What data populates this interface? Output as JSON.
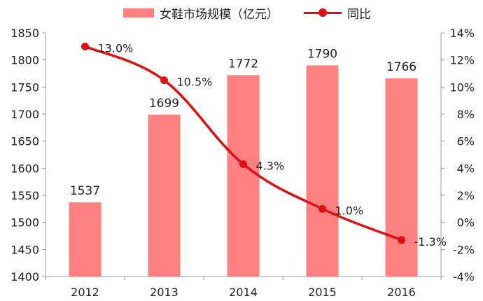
{
  "chart_data": {
    "type": "bar+line",
    "categories": [
      "2012",
      "2013",
      "2014",
      "2015",
      "2016"
    ],
    "series": [
      {
        "name": "女鞋市场规模（亿元）",
        "type": "bar",
        "axis": "left",
        "values": [
          1537,
          1699,
          1772,
          1790,
          1766
        ],
        "labels": [
          "1537",
          "1699",
          "1772",
          "1790",
          "1766"
        ],
        "color": "#ff8080"
      },
      {
        "name": "同比",
        "type": "line",
        "axis": "right",
        "values": [
          13.0,
          10.5,
          4.3,
          1.0,
          -1.3
        ],
        "labels": [
          "13.0%",
          "10.5%",
          "4.3%",
          "1.0%",
          "-1.3%"
        ],
        "color": "#e01010"
      }
    ],
    "y_left": {
      "min": 1400,
      "max": 1850,
      "ticks": [
        "1400",
        "1450",
        "1500",
        "1550",
        "1600",
        "1650",
        "1700",
        "1750",
        "1800",
        "1850"
      ]
    },
    "y_right": {
      "min": -4,
      "max": 14,
      "ticks": [
        "-4%",
        "-2%",
        "0%",
        "2%",
        "4%",
        "6%",
        "8%",
        "10%",
        "12%",
        "14%"
      ]
    },
    "legend_position": "top-center",
    "grid": false
  }
}
